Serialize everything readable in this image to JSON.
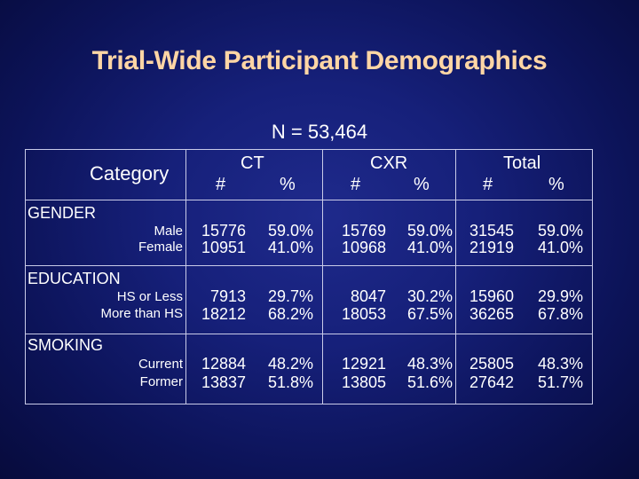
{
  "slide": {
    "title": "Trial-Wide Participant Demographics",
    "subtitle": "N = 53,464",
    "title_color": "#ffd6a5"
  },
  "table": {
    "category_header": "Category",
    "groups": [
      {
        "name": "CT",
        "num_label": "#",
        "pct_label": "%"
      },
      {
        "name": "CXR",
        "num_label": "#",
        "pct_label": "%"
      },
      {
        "name": "Total",
        "num_label": "#",
        "pct_label": "%"
      }
    ],
    "sections": [
      {
        "name": "GENDER",
        "rows": [
          {
            "label": "Male",
            "values": [
              "15776",
              "59.0%",
              "15769",
              "59.0%",
              "31545",
              "59.0%"
            ]
          },
          {
            "label": "Female",
            "values": [
              "10951",
              "41.0%",
              "10968",
              "41.0%",
              "21919",
              "41.0%"
            ]
          }
        ]
      },
      {
        "name": "EDUCATION",
        "rows": [
          {
            "label": "HS or Less",
            "values": [
              "7913",
              "29.7%",
              "8047",
              "30.2%",
              "15960",
              "29.9%"
            ]
          },
          {
            "label": "More than HS",
            "values": [
              "18212",
              "68.2%",
              "18053",
              "67.5%",
              "36265",
              "67.8%"
            ]
          }
        ]
      },
      {
        "name": "SMOKING",
        "rows": [
          {
            "label": "Current",
            "values": [
              "12884",
              "48.2%",
              "12921",
              "48.3%",
              "25805",
              "48.3%"
            ]
          },
          {
            "label": "Former",
            "values": [
              "13837",
              "51.8%",
              "13805",
              "51.6%",
              "27642",
              "51.7%"
            ]
          }
        ]
      }
    ]
  }
}
